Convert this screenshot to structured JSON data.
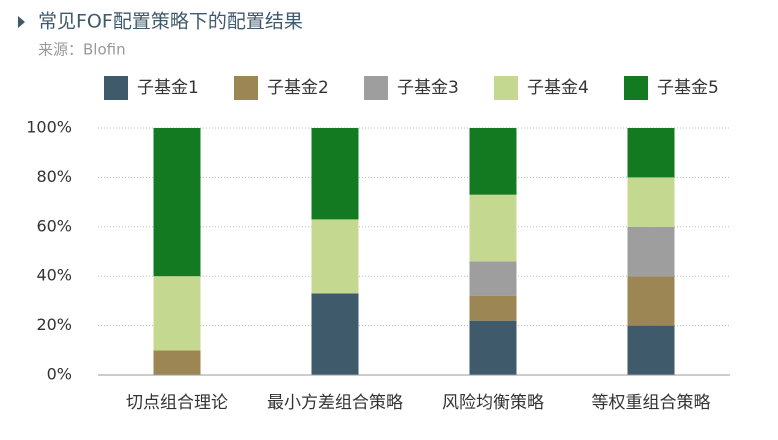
{
  "chart_data": {
    "type": "stacked_bar",
    "title": "常见FOF配置策略下的配置结果",
    "subtitle": "来源：Blofin",
    "categories": [
      "切点组合理论",
      "最小方差组合策略",
      "风险均衡策略",
      "等权重组合策略"
    ],
    "series": [
      {
        "name": "子基金1",
        "color": "#3f5a6b",
        "values": [
          0,
          33,
          22,
          20
        ]
      },
      {
        "name": "子基金2",
        "color": "#9b8654",
        "values": [
          10,
          0,
          10,
          20
        ]
      },
      {
        "name": "子基金3",
        "color": "#9e9e9e",
        "values": [
          0,
          0,
          14,
          20
        ]
      },
      {
        "name": "子基金4",
        "color": "#c4d98f",
        "values": [
          30,
          30,
          27,
          20
        ]
      },
      {
        "name": "子基金5",
        "color": "#137a22",
        "values": [
          60,
          37,
          27,
          20
        ]
      }
    ],
    "ylim": [
      0,
      100
    ],
    "yticks": [
      {
        "value": 0,
        "label": "0%"
      },
      {
        "value": 20,
        "label": "20%"
      },
      {
        "value": 40,
        "label": "40%"
      },
      {
        "value": 60,
        "label": "60%"
      },
      {
        "value": 80,
        "label": "80%"
      },
      {
        "value": 100,
        "label": "100%"
      }
    ],
    "grid": true,
    "legend": "top"
  }
}
